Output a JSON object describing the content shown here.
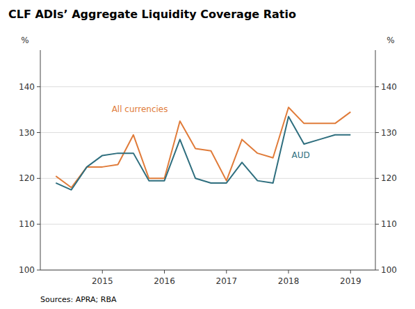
{
  "chart_data": {
    "type": "line",
    "title": "CLF ADIs’ Aggregate Liquidity Coverage Ratio",
    "ylabel": "%",
    "y2label": "%",
    "source": "Sources:  APRA; RBA",
    "x": [
      2014.25,
      2014.5,
      2014.75,
      2015.0,
      2015.25,
      2015.5,
      2015.75,
      2016.0,
      2016.25,
      2016.5,
      2016.75,
      2017.0,
      2017.25,
      2017.5,
      2017.75,
      2018.0,
      2018.25,
      2018.5,
      2018.75,
      2019.0
    ],
    "xlim": [
      2014.0,
      2019.4
    ],
    "xticks": [
      2015,
      2016,
      2017,
      2018,
      2019
    ],
    "ylim": [
      100,
      148
    ],
    "yticks": [
      100,
      110,
      120,
      130,
      140
    ],
    "y2lim": [
      100,
      148
    ],
    "y2ticks": [
      100,
      110,
      120,
      130,
      140
    ],
    "grid": true,
    "series": [
      {
        "name": "All currencies",
        "color": "#E07B39",
        "values": [
          120.5,
          118.0,
          122.5,
          122.5,
          123.0,
          129.5,
          120.0,
          120.0,
          132.5,
          126.5,
          126.0,
          119.5,
          128.5,
          125.5,
          124.5,
          135.5,
          132.0,
          132.0,
          132.0,
          134.5
        ]
      },
      {
        "name": "AUD",
        "color": "#2E6E7E",
        "values": [
          119.0,
          117.5,
          122.5,
          125.0,
          125.5,
          125.5,
          119.5,
          119.5,
          128.5,
          120.0,
          119.0,
          119.0,
          123.5,
          119.5,
          119.0,
          133.5,
          127.5,
          128.5,
          129.5,
          129.5
        ]
      }
    ],
    "annotations": [
      {
        "text": "All currencies",
        "x": 2015.15,
        "y": 134.5
      },
      {
        "text": "AUD",
        "x": 2018.05,
        "y": 124.5
      }
    ]
  }
}
